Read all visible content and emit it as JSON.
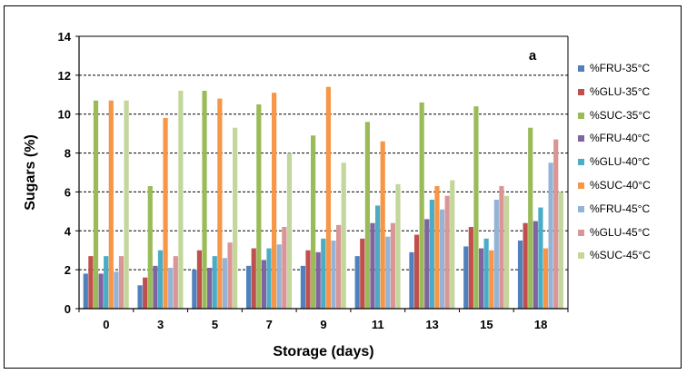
{
  "chart_data": {
    "type": "bar",
    "title": "",
    "panel_label": "a",
    "xlabel": "Storage (days)",
    "ylabel": "Sugars (%)",
    "ylim": [
      0,
      14
    ],
    "yticks": [
      "0",
      "2",
      "4",
      "6",
      "8",
      "10",
      "12",
      "14"
    ],
    "grid": "horizontal dashed",
    "legend_position": "right",
    "categories": [
      "0",
      "3",
      "5",
      "7",
      "9",
      "11",
      "13",
      "15",
      "18"
    ],
    "series": [
      {
        "name": "%FRU-35°C",
        "color": "#4F81BD",
        "values": [
          1.8,
          1.2,
          2.0,
          2.2,
          2.2,
          2.7,
          2.9,
          3.2,
          3.5
        ]
      },
      {
        "name": "%GLU-35°C",
        "color": "#C0504D",
        "values": [
          2.7,
          1.6,
          3.0,
          3.1,
          3.0,
          3.6,
          3.8,
          4.2,
          4.4
        ]
      },
      {
        "name": "%SUC-35°C",
        "color": "#9BBB59",
        "values": [
          10.7,
          6.3,
          11.2,
          10.5,
          8.9,
          9.6,
          10.6,
          10.4,
          9.3
        ]
      },
      {
        "name": "%FRU-40°C",
        "color": "#8064A2",
        "values": [
          1.8,
          2.2,
          2.1,
          2.5,
          2.9,
          4.4,
          4.6,
          3.1,
          4.5
        ]
      },
      {
        "name": "%GLU-40°C",
        "color": "#4BACC6",
        "values": [
          2.7,
          3.0,
          2.7,
          3.1,
          3.6,
          5.3,
          5.6,
          3.6,
          5.2
        ]
      },
      {
        "name": "%SUC-40°C",
        "color": "#F79646",
        "values": [
          10.7,
          9.8,
          10.8,
          11.1,
          11.4,
          8.6,
          6.3,
          3.0,
          3.1
        ]
      },
      {
        "name": "%FRU-45°C",
        "color": "#95B3D7",
        "values": [
          1.9,
          2.1,
          2.6,
          3.3,
          3.5,
          3.7,
          5.1,
          5.6,
          7.5
        ]
      },
      {
        "name": "%GLU-45°C",
        "color": "#D99694",
        "values": [
          2.7,
          2.7,
          3.4,
          4.2,
          4.3,
          4.4,
          5.8,
          6.3,
          8.7
        ]
      },
      {
        "name": "%SUC-45°C",
        "color": "#C3D69B",
        "values": [
          10.7,
          11.2,
          9.3,
          8.0,
          7.5,
          6.4,
          6.6,
          5.8,
          6.0
        ]
      }
    ]
  }
}
